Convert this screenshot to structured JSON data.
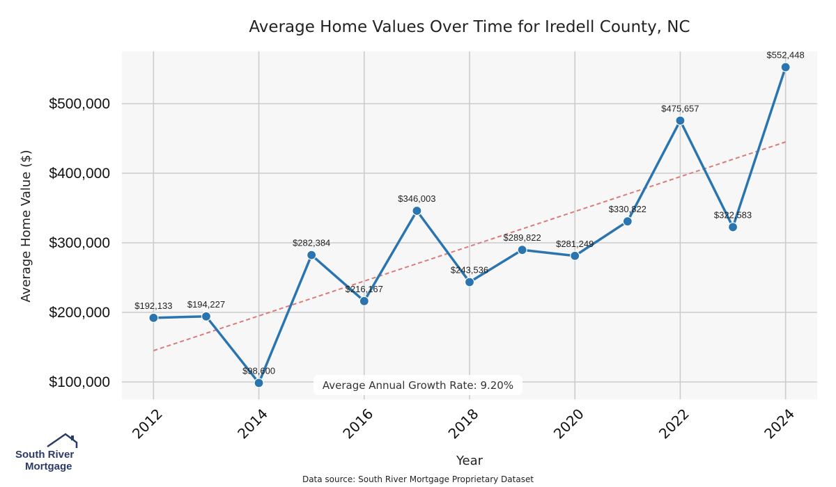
{
  "colors": {
    "line": "#2a75b0",
    "trend": "#d97b7b",
    "plot_bg": "#f7f7f7",
    "grid": "#cccccc",
    "logo": "#2b3a67"
  },
  "chart_data": {
    "type": "line",
    "title": "Average Home Values Over Time for Iredell County, NC",
    "xlabel": "Year",
    "ylabel": "Average Home Value ($)",
    "x": [
      2012,
      2013,
      2014,
      2015,
      2016,
      2017,
      2018,
      2019,
      2020,
      2021,
      2022,
      2023,
      2024
    ],
    "series": [
      {
        "name": "Average Home Value",
        "values": [
          192133,
          194227,
          98600,
          282384,
          216167,
          346003,
          243536,
          289822,
          281249,
          330822,
          475657,
          322583,
          552448
        ],
        "labels": [
          "$192,133",
          "$194,227",
          "$98,600",
          "$282,384",
          "$216,167",
          "$346,003",
          "$243,536",
          "$289,822",
          "$281,249",
          "$330,822",
          "$475,657",
          "$322,583",
          "$552,448"
        ]
      }
    ],
    "trend": {
      "name": "Trend",
      "start": [
        2012,
        145000
      ],
      "end": [
        2024,
        445000
      ]
    },
    "xticks": [
      2012,
      2014,
      2016,
      2018,
      2020,
      2022,
      2024
    ],
    "xtick_labels": [
      "2012",
      "2014",
      "2016",
      "2018",
      "2020",
      "2022",
      "2024"
    ],
    "yticks": [
      100000,
      200000,
      300000,
      400000,
      500000
    ],
    "ytick_labels": [
      "$100,000",
      "$200,000",
      "$300,000",
      "$400,000",
      "$500,000"
    ],
    "xlim": [
      2011.4,
      2024.6
    ],
    "ylim": [
      75000,
      575000
    ],
    "grid": true,
    "annotation": "Average Annual Growth Rate: 9.20%",
    "source": "Data source: South River Mortgage Proprietary Dataset"
  },
  "logo": {
    "line1": "South River",
    "line2": "Mortgage"
  }
}
